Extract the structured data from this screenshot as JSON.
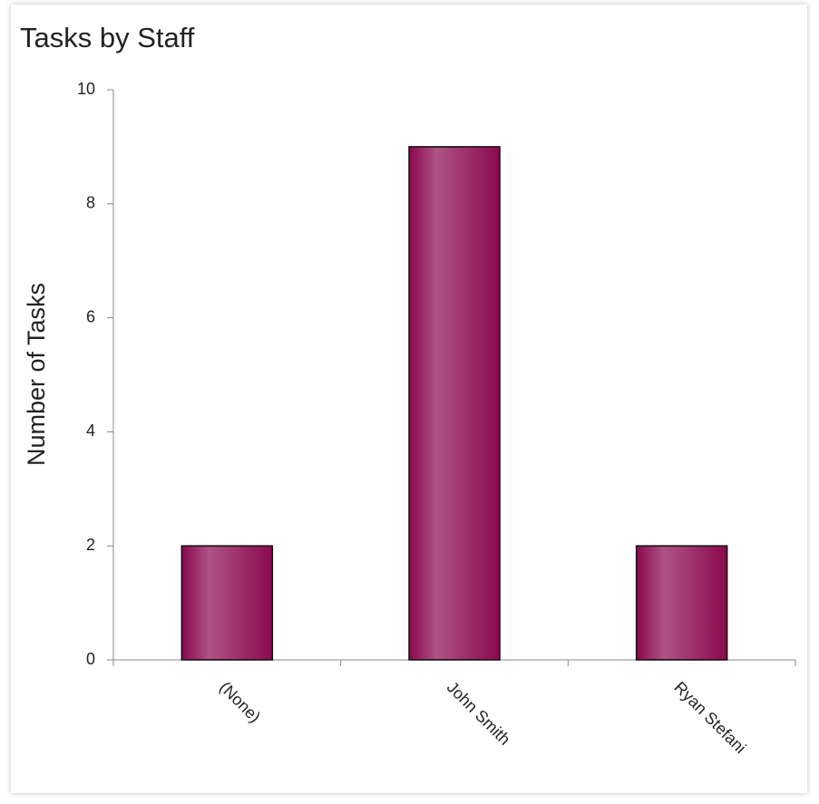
{
  "chart_data": {
    "type": "bar",
    "title": "Tasks by Staff",
    "y_label": "Number of Tasks",
    "categories": [
      "(None)",
      "John Smith",
      "Ryan Stefani"
    ],
    "values": [
      2,
      9,
      2
    ],
    "color": "#8b0a50",
    "ylim": [
      0,
      10
    ],
    "yticks": [
      0,
      2,
      4,
      6,
      8,
      10
    ]
  }
}
